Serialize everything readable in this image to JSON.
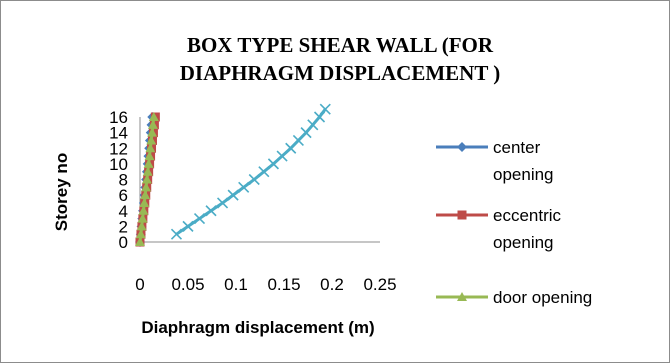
{
  "chart_data": {
    "type": "line",
    "title_lines": [
      "BOX TYPE SHEAR WALL (FOR",
      "DIAPHRAGM DISPLACEMENT )"
    ],
    "xlabel": "Diaphragm displacement (m)",
    "ylabel": "Storey no",
    "xlim": [
      0,
      0.25
    ],
    "ylim": [
      0,
      16
    ],
    "xticks": [
      "0",
      "0.05",
      "0.1",
      "0.15",
      "0.2",
      "0.25"
    ],
    "yticks": [
      "0",
      "2",
      "4",
      "6",
      "8",
      "10",
      "12",
      "14",
      "16"
    ],
    "legend_position": "right",
    "series": [
      {
        "name": "center opening",
        "color": "#4a7ebb",
        "marker": "diamond",
        "points": [
          [
            0.0,
            0
          ],
          [
            0.0008,
            1
          ],
          [
            0.0016,
            2
          ],
          [
            0.0024,
            3
          ],
          [
            0.0032,
            4
          ],
          [
            0.004,
            5
          ],
          [
            0.0048,
            6
          ],
          [
            0.0056,
            7
          ],
          [
            0.0064,
            8
          ],
          [
            0.0072,
            9
          ],
          [
            0.008,
            10
          ],
          [
            0.0088,
            11
          ],
          [
            0.0096,
            12
          ],
          [
            0.0104,
            13
          ],
          [
            0.0112,
            14
          ],
          [
            0.012,
            15
          ],
          [
            0.0128,
            16
          ]
        ]
      },
      {
        "name": "eccentric opening",
        "color": "#be4b48",
        "marker": "square",
        "points": [
          [
            0.0,
            0
          ],
          [
            0.001,
            1
          ],
          [
            0.002,
            2
          ],
          [
            0.003,
            3
          ],
          [
            0.004,
            4
          ],
          [
            0.005,
            5
          ],
          [
            0.006,
            6
          ],
          [
            0.007,
            7
          ],
          [
            0.008,
            8
          ],
          [
            0.009,
            9
          ],
          [
            0.01,
            10
          ],
          [
            0.011,
            11
          ],
          [
            0.012,
            12
          ],
          [
            0.013,
            13
          ],
          [
            0.014,
            14
          ],
          [
            0.015,
            15
          ],
          [
            0.016,
            16
          ]
        ]
      },
      {
        "name": "door opening",
        "color": "#98b954",
        "marker": "triangle",
        "points": [
          [
            0.0,
            0
          ],
          [
            0.0009,
            1
          ],
          [
            0.0018,
            2
          ],
          [
            0.0027,
            3
          ],
          [
            0.0036,
            4
          ],
          [
            0.0045,
            5
          ],
          [
            0.0054,
            6
          ],
          [
            0.0063,
            7
          ],
          [
            0.0072,
            8
          ],
          [
            0.0081,
            9
          ],
          [
            0.009,
            10
          ],
          [
            0.0099,
            11
          ],
          [
            0.0108,
            12
          ],
          [
            0.0117,
            13
          ],
          [
            0.0126,
            14
          ],
          [
            0.0135,
            15
          ],
          [
            0.0144,
            16
          ]
        ]
      },
      {
        "name": "",
        "color": "#4bacc6",
        "marker": "x",
        "points": [
          [
            0.038,
            1
          ],
          [
            0.05,
            2
          ],
          [
            0.062,
            3
          ],
          [
            0.074,
            4
          ],
          [
            0.086,
            5
          ],
          [
            0.097,
            6
          ],
          [
            0.108,
            7
          ],
          [
            0.119,
            8
          ],
          [
            0.129,
            9
          ],
          [
            0.139,
            10
          ],
          [
            0.148,
            11
          ],
          [
            0.157,
            12
          ],
          [
            0.165,
            13
          ],
          [
            0.173,
            14
          ],
          [
            0.18,
            15
          ],
          [
            0.187,
            16
          ],
          [
            0.193,
            17
          ]
        ]
      }
    ]
  }
}
